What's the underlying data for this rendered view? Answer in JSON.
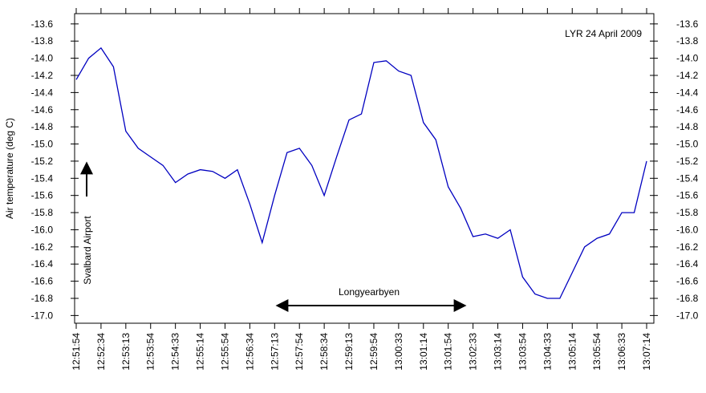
{
  "chart_data": {
    "type": "line",
    "y_label": "Air temperature (deg C)",
    "annotations": [
      "LYR 24 April 2009",
      "Longyearbyen",
      "Svalbard Airport"
    ],
    "categories": [
      "12:51:54",
      null,
      "12:52:34",
      null,
      "12:53:13",
      null,
      "12:53:54",
      null,
      "12:54:33",
      null,
      "12:55:14",
      null,
      "12:55:54",
      null,
      "12:56:34",
      null,
      "12:57:13",
      null,
      "12:57:54",
      null,
      "12:58:34",
      null,
      "12:59:13",
      null,
      "12:59:54",
      null,
      "13:00:33",
      null,
      "13:01:14",
      null,
      "13:01:54",
      null,
      "13:02:33",
      null,
      "13:03:14",
      null,
      "13:03:54",
      null,
      "13:04:33",
      null,
      "13:05:14",
      null,
      "13:05:54",
      null,
      "13:06:33",
      null,
      "13:07:14"
    ],
    "series": [
      {
        "color": "#0000c0",
        "values": [
          -14.25,
          -14.0,
          -13.88,
          -14.1,
          -14.85,
          -15.05,
          -15.15,
          -15.25,
          -15.45,
          -15.35,
          -15.3,
          -15.32,
          -15.4,
          -15.3,
          -15.7,
          -16.15,
          -15.6,
          -15.1,
          -15.05,
          -15.25,
          -15.6,
          -15.15,
          -14.72,
          -14.65,
          -14.05,
          -14.03,
          -14.15,
          -14.2,
          -14.75,
          -14.95,
          -15.5,
          -15.75,
          -16.08,
          -16.05,
          -16.1,
          -16.0,
          -16.55,
          -16.75,
          -16.8,
          -16.8,
          -16.5,
          -16.2,
          -16.1,
          -16.05,
          -15.8,
          -15.8,
          -15.2
        ]
      }
    ],
    "ylim": [
      -17.09,
      -13.48
    ],
    "yticks": [
      -13.6,
      -13.8,
      {
        "value": -14.0,
        "label": "-14.0"
      },
      -14.2,
      -14.4,
      -14.6,
      -14.8,
      {
        "value": -15.0,
        "label": "-15.0"
      },
      -15.2,
      -15.4,
      -15.6,
      -15.8,
      {
        "value": -16.0,
        "label": "-16.0"
      },
      -16.2,
      -16.4,
      -16.6,
      -16.8,
      {
        "value": -17.0,
        "label": "-17.0"
      }
    ],
    "grid": false
  }
}
